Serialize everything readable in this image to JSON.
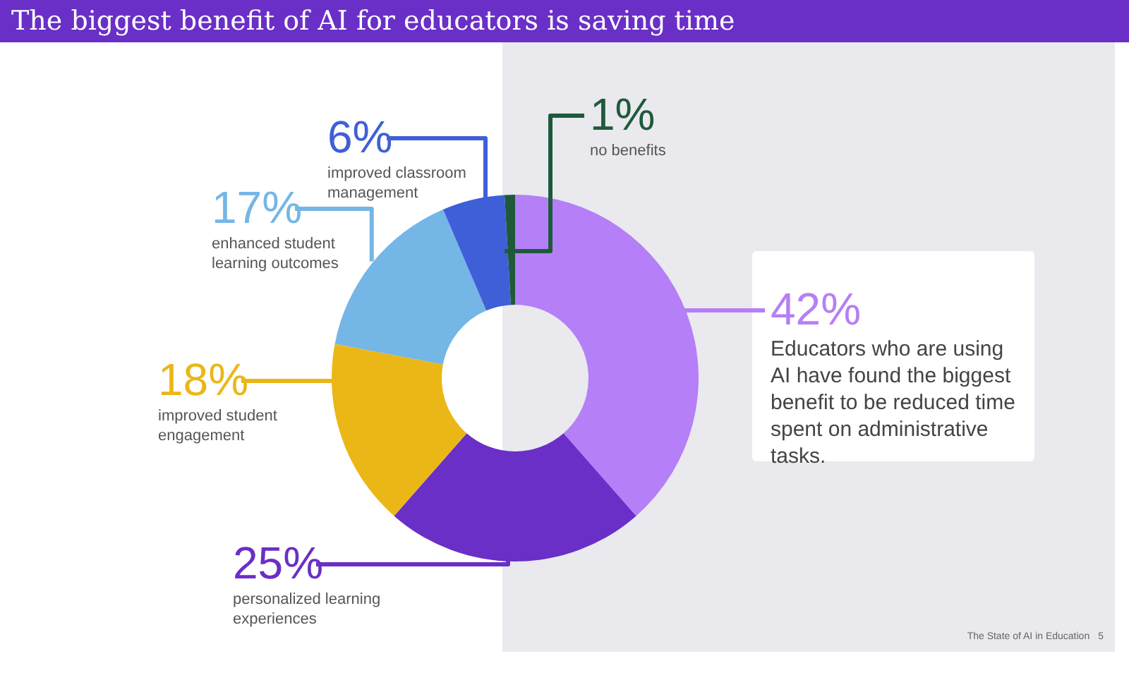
{
  "chart_data": {
    "type": "donut",
    "title": "The biggest benefit of AI for educators is saving time",
    "categories": [
      "Educators who are using AI have found the biggest benefit to be reduced time spent on administrative tasks.",
      "personalized learning experiences",
      "improved student engagement",
      "enhanced student learning outcomes",
      "improved classroom management",
      "no benefits"
    ],
    "values": [
      42,
      25,
      18,
      17,
      6,
      1
    ],
    "colors": [
      "#b57ff7",
      "#6a2fc7",
      "#ebb716",
      "#74b6e6",
      "#3f5fd9",
      "#1e5a3a"
    ],
    "value_labels": [
      "42%",
      "25%",
      "18%",
      "17%",
      "6%",
      "1%"
    ],
    "annotations": [
      "The State of AI in Education",
      "5"
    ]
  }
}
